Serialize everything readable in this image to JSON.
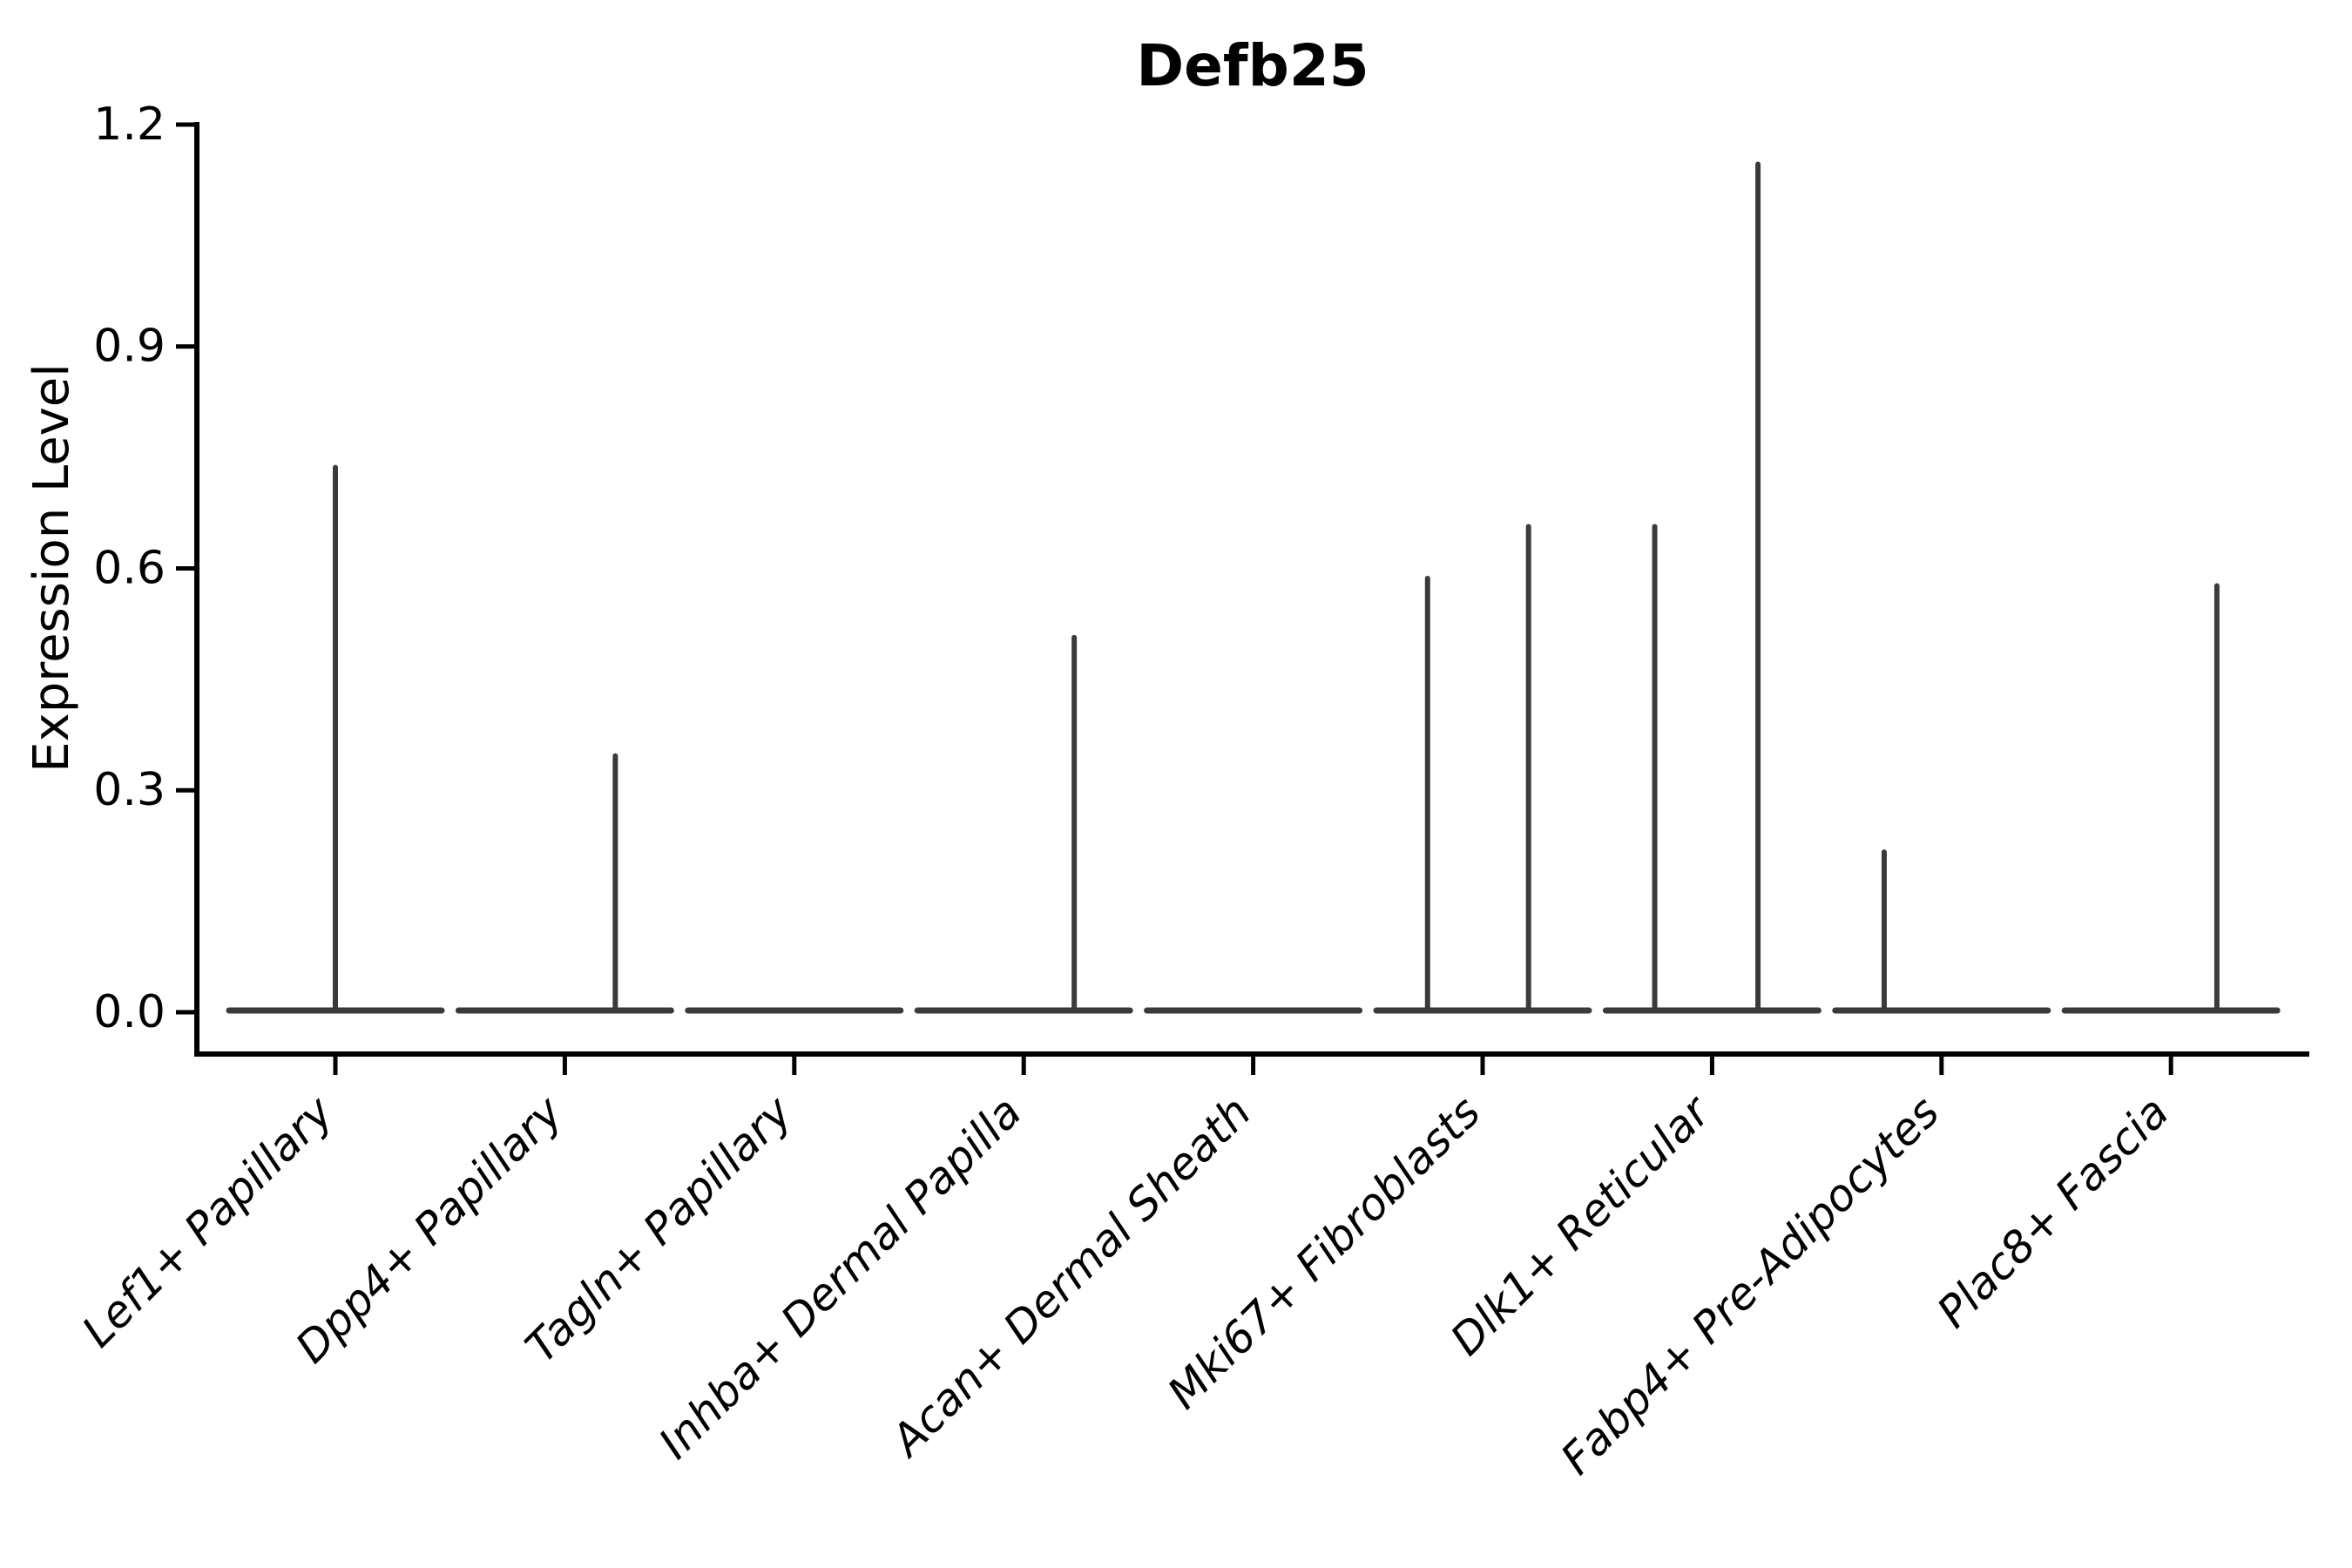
{
  "figure": {
    "title": "Defb25",
    "ylabel": "Expression Level"
  },
  "chart_data": {
    "type": "violin",
    "title": "Defb25",
    "xlabel": "",
    "ylabel": "Expression Level",
    "ylim": [
      0,
      1.2
    ],
    "yticks": [
      0.0,
      0.3,
      0.6,
      0.9,
      1.2
    ],
    "ytick_labels": [
      "0.0",
      "0.3",
      "0.6",
      "0.9",
      "1.2"
    ],
    "grid": false,
    "legend": "none",
    "categories": [
      "Lef1+ Papillary",
      "Dpp4+ Papillary",
      "Tagln+ Papillary",
      "Inhba+ Dermal Papilla",
      "Acan+ Dermal Sheath",
      "Mki67+ Fibroblasts",
      "Dlk1+ Reticular",
      "Fabp4+ Pre-Adipocytes",
      "Plac8+ Fascia"
    ],
    "violins": [
      {
        "category": "Lef1+ Papillary",
        "baseline_value": 0.0,
        "spikes": [
          {
            "offset": 0.0,
            "peak": 0.74
          }
        ]
      },
      {
        "category": "Dpp4+ Papillary",
        "baseline_value": 0.0,
        "spikes": [
          {
            "offset": 0.22,
            "peak": 0.35
          }
        ]
      },
      {
        "category": "Tagln+ Papillary",
        "baseline_value": 0.0,
        "spikes": []
      },
      {
        "category": "Inhba+ Dermal Papilla",
        "baseline_value": 0.0,
        "spikes": [
          {
            "offset": 0.22,
            "peak": 0.51
          }
        ]
      },
      {
        "category": "Acan+ Dermal Sheath",
        "baseline_value": 0.0,
        "spikes": []
      },
      {
        "category": "Mki67+ Fibroblasts",
        "baseline_value": 0.0,
        "spikes": [
          {
            "offset": -0.24,
            "peak": 0.59
          },
          {
            "offset": 0.2,
            "peak": 0.66
          }
        ]
      },
      {
        "category": "Dlk1+ Reticular",
        "baseline_value": 0.0,
        "spikes": [
          {
            "offset": -0.25,
            "peak": 0.66
          },
          {
            "offset": 0.2,
            "peak": 1.15
          }
        ]
      },
      {
        "category": "Fabp4+ Pre-Adipocytes",
        "baseline_value": 0.0,
        "spikes": [
          {
            "offset": -0.25,
            "peak": 0.22
          }
        ]
      },
      {
        "category": "Plac8+ Fascia",
        "baseline_value": 0.0,
        "spikes": [
          {
            "offset": 0.2,
            "peak": 0.58
          }
        ]
      }
    ],
    "style": {
      "violin_color": "#3a3a3a",
      "axis_color": "#000000",
      "text_color": "#000000",
      "background": "#ffffff"
    }
  }
}
